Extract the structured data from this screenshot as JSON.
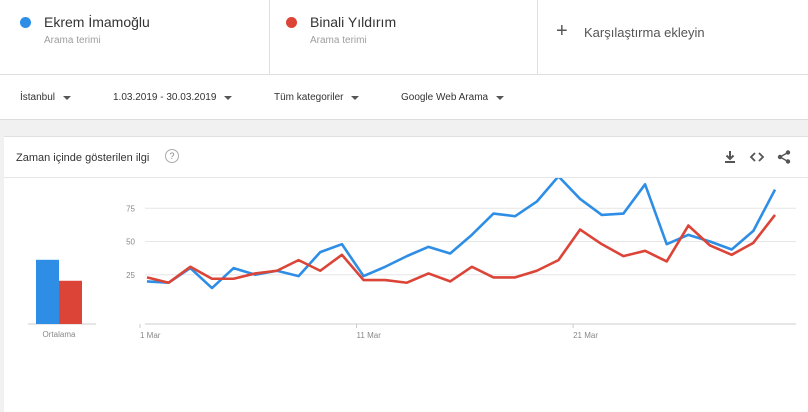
{
  "terms": [
    {
      "name": "Ekrem İmamoğlu",
      "subtitle": "Arama terimi",
      "color": "#2e8ee6"
    },
    {
      "name": "Binali Yıldırım",
      "subtitle": "Arama terimi",
      "color": "#db4437"
    }
  ],
  "add_comparison": {
    "label": "Karşılaştırma ekleyin"
  },
  "filters": {
    "region": "İstanbul",
    "date_range": "1.03.2019 - 30.03.2019",
    "category": "Tüm kategoriler",
    "search_type": "Google Web Arama"
  },
  "card": {
    "title": "Zaman içinde gösterilen ilgi",
    "help_icon": "help-circle-icon",
    "actions": [
      "download-icon",
      "embed-code-icon",
      "share-icon"
    ]
  },
  "chart_data": {
    "type": "line",
    "x": [
      1,
      2,
      3,
      4,
      5,
      6,
      7,
      8,
      9,
      10,
      11,
      12,
      13,
      14,
      15,
      16,
      17,
      18,
      19,
      20,
      21,
      22,
      23,
      24,
      25,
      26,
      27,
      28,
      29,
      30
    ],
    "x_ticks": [
      {
        "value": 1,
        "label": "1 Mar"
      },
      {
        "value": 11,
        "label": "11 Mar"
      },
      {
        "value": 21,
        "label": "21 Mar"
      }
    ],
    "ylim": [
      0,
      100
    ],
    "y_ticks": [
      25,
      50,
      75,
      100
    ],
    "grid": true,
    "series": [
      {
        "name": "Ekrem İmamoğlu",
        "color": "#2e8ee6",
        "values": [
          20,
          19,
          30,
          15,
          30,
          25,
          28,
          24,
          42,
          48,
          24,
          31,
          39,
          46,
          41,
          55,
          71,
          69,
          80,
          99,
          82,
          70,
          71,
          93,
          48,
          55,
          50,
          44,
          58,
          89
        ],
        "average": 49
      },
      {
        "name": "Binali Yıldırım",
        "color": "#db4437",
        "values": [
          23,
          19,
          31,
          22,
          22,
          26,
          28,
          36,
          28,
          40,
          21,
          21,
          19,
          26,
          20,
          31,
          23,
          23,
          28,
          36,
          59,
          48,
          39,
          43,
          35,
          62,
          47,
          40,
          49,
          70
        ],
        "average": 33
      }
    ],
    "average_label": "Ortalama"
  }
}
